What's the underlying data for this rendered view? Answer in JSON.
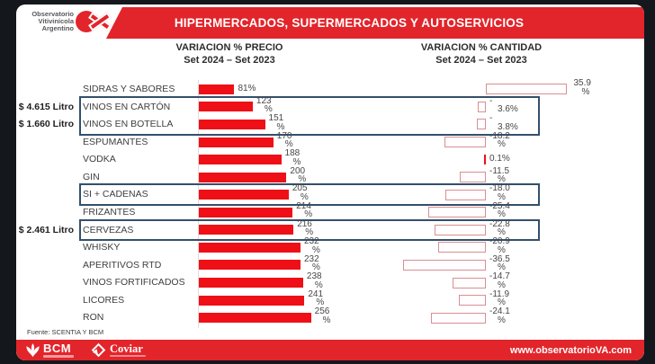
{
  "logo": {
    "lines": [
      "Observatorio",
      "Vitivinícola",
      "Argentino"
    ]
  },
  "header": {
    "title": "HIPERMERCADOS, SUPERMERCADOS Y AUTOSERVICIOS"
  },
  "columns": {
    "price": {
      "title": "VARIACION % PRECIO",
      "subtitle": "Set 2024 – Set 2023"
    },
    "quantity": {
      "title": "VARIACION % CANTIDAD",
      "subtitle": "Set 2024 – Set 2023"
    }
  },
  "rows": [
    {
      "label": "SIDRAS Y SABORES",
      "price": 81,
      "price_label_lines": [
        "81%"
      ],
      "qty": 35.9,
      "qty_label_lines": [
        "35.9",
        "%"
      ]
    },
    {
      "label": "VINOS EN CARTÓN",
      "price": 123,
      "price_label_lines": [
        "123",
        "%"
      ],
      "qty": -3.6,
      "qty_label_lines": [
        "-",
        "3.6%"
      ]
    },
    {
      "label": "VINOS EN BOTELLA",
      "price": 151,
      "price_label_lines": [
        "151",
        "%"
      ],
      "qty": -3.8,
      "qty_label_lines": [
        "-",
        "3.8%"
      ]
    },
    {
      "label": "ESPUMANTES",
      "price": 170,
      "price_label_lines": [
        "170",
        "%"
      ],
      "qty": -18.2,
      "qty_label_lines": [
        "-18.2",
        "%"
      ]
    },
    {
      "label": "VODKA",
      "price": 188,
      "price_label_lines": [
        "188",
        "%"
      ],
      "qty": 0.1,
      "qty_label_lines": [
        "0.1%"
      ]
    },
    {
      "label": "GIN",
      "price": 200,
      "price_label_lines": [
        "200",
        "%"
      ],
      "qty": -11.5,
      "qty_label_lines": [
        "-11.5",
        "%"
      ]
    },
    {
      "label": "SI + CADENAS",
      "price": 205,
      "price_label_lines": [
        "205",
        "%"
      ],
      "qty": -18.0,
      "qty_label_lines": [
        "-18.0",
        "%"
      ]
    },
    {
      "label": "FRIZANTES",
      "price": 214,
      "price_label_lines": [
        "214",
        "%"
      ],
      "qty": -25.4,
      "qty_label_lines": [
        "-25.4",
        "%"
      ]
    },
    {
      "label": "CERVEZAS",
      "price": 216,
      "price_label_lines": [
        "216",
        "%"
      ],
      "qty": -22.8,
      "qty_label_lines": [
        "-22.8",
        "%"
      ]
    },
    {
      "label": "WHISKY",
      "price": 232,
      "price_label_lines": [
        "232",
        "%"
      ],
      "qty": -20.9,
      "qty_label_lines": [
        "-20.9",
        "%"
      ]
    },
    {
      "label": "APERITIVOS RTD",
      "price": 232,
      "price_label_lines": [
        "232",
        "%"
      ],
      "qty": -36.5,
      "qty_label_lines": [
        "-36.5",
        "%"
      ]
    },
    {
      "label": "VINOS FORTIFICADOS",
      "price": 238,
      "price_label_lines": [
        "238",
        "%"
      ],
      "qty": -14.7,
      "qty_label_lines": [
        "-14.7",
        "%"
      ]
    },
    {
      "label": "LICORES",
      "price": 241,
      "price_label_lines": [
        "241",
        "%"
      ],
      "qty": -11.9,
      "qty_label_lines": [
        "-11.9",
        "%"
      ]
    },
    {
      "label": "RON",
      "price": 256,
      "price_label_lines": [
        "256",
        "%"
      ],
      "qty": -24.1,
      "qty_label_lines": [
        "-24.1",
        "%"
      ]
    }
  ],
  "annotations": [
    {
      "row": 1,
      "text": "$ 4.615 Litro"
    },
    {
      "row": 2,
      "text": "$ 1.660 Litro"
    },
    {
      "row": 8,
      "text": "$ 2.461 Litro"
    }
  ],
  "highlight_boxes": [
    {
      "from_row": 1,
      "to_row": 2
    },
    {
      "from_row": 6,
      "to_row": 6
    },
    {
      "from_row": 8,
      "to_row": 8
    }
  ],
  "footer": {
    "fuente": "Fuente: SCENTIA Y BCM",
    "bcm_label": "BCM",
    "coviar_label": "Coviar",
    "website": "www.observatorioVA.com"
  },
  "colors": {
    "brand_red": "#e2252b",
    "bar_red": "#ee1016",
    "outline_bar_border": "#d98f92",
    "highlight_navy": "#33506b"
  },
  "chart_data": {
    "type": "bar",
    "title": "HIPERMERCADOS, SUPERMERCADOS Y AUTOSERVICIOS",
    "categories": [
      "SIDRAS Y SABORES",
      "VINOS EN CARTÓN",
      "VINOS EN BOTELLA",
      "ESPUMANTES",
      "VODKA",
      "GIN",
      "SI + CADENAS",
      "FRIZANTES",
      "CERVEZAS",
      "WHISKY",
      "APERITIVOS RTD",
      "VINOS FORTIFICADOS",
      "LICORES",
      "RON"
    ],
    "series": [
      {
        "name": "VARIACION % PRECIO Set 2024 – Set 2023",
        "values": [
          81,
          123,
          151,
          170,
          188,
          200,
          205,
          214,
          216,
          232,
          232,
          238,
          241,
          256
        ]
      },
      {
        "name": "VARIACION % CANTIDAD Set 2024 – Set 2023",
        "values": [
          35.9,
          -3.6,
          -3.8,
          -18.2,
          0.1,
          -11.5,
          -18.0,
          -25.4,
          -22.8,
          -20.9,
          -36.5,
          -14.7,
          -11.9,
          -24.1
        ]
      }
    ],
    "annotations": [
      "$ 4.615 Litro (VINOS EN CARTÓN)",
      "$ 1.660 Litro (VINOS EN BOTELLA)",
      "$ 2.461 Litro (CERVEZAS)"
    ],
    "highlighted_categories": [
      "VINOS EN CARTÓN",
      "VINOS EN BOTELLA",
      "SI + CADENAS",
      "CERVEZAS"
    ],
    "source": "Fuente: SCENTIA Y BCM",
    "legend_position": "none",
    "grid": false,
    "orientation": "horizontal"
  }
}
